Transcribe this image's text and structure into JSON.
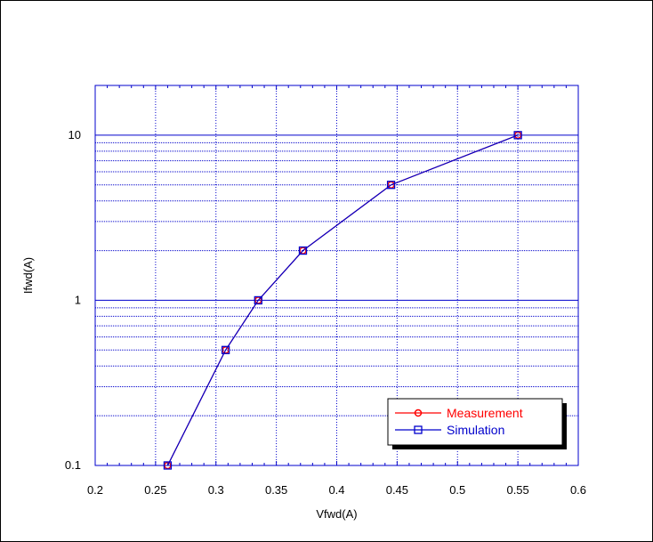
{
  "chart_data": {
    "type": "line",
    "xlabel": "Vfwd(A)",
    "ylabel": "Ifwd(A)",
    "x_scale": "linear",
    "y_scale": "log",
    "xlim": [
      0.2,
      0.6
    ],
    "ylim": [
      0.1,
      20
    ],
    "x_ticks": [
      "0.2",
      "0.25",
      "0.3",
      "0.35",
      "0.4",
      "0.45",
      "0.5",
      "0.55",
      "0.6"
    ],
    "y_ticks": [
      "0.1",
      "1",
      "10"
    ],
    "grid": true,
    "legend_position": "bottom-right",
    "series": [
      {
        "name": "Measurement",
        "color": "#ff0000",
        "marker": "circle",
        "x": [
          0.26,
          0.308,
          0.335,
          0.372,
          0.445,
          0.55
        ],
        "y": [
          0.1,
          0.5,
          1,
          2,
          5,
          10
        ]
      },
      {
        "name": "Simulation",
        "color": "#0000cc",
        "marker": "square",
        "x": [
          0.26,
          0.308,
          0.335,
          0.372,
          0.445,
          0.55
        ],
        "y": [
          0.1,
          0.5,
          1,
          2,
          5,
          10
        ]
      }
    ],
    "colors": {
      "grid": "#0000cc",
      "axes": "#0000cc",
      "legend_shadow": "#000000"
    }
  }
}
